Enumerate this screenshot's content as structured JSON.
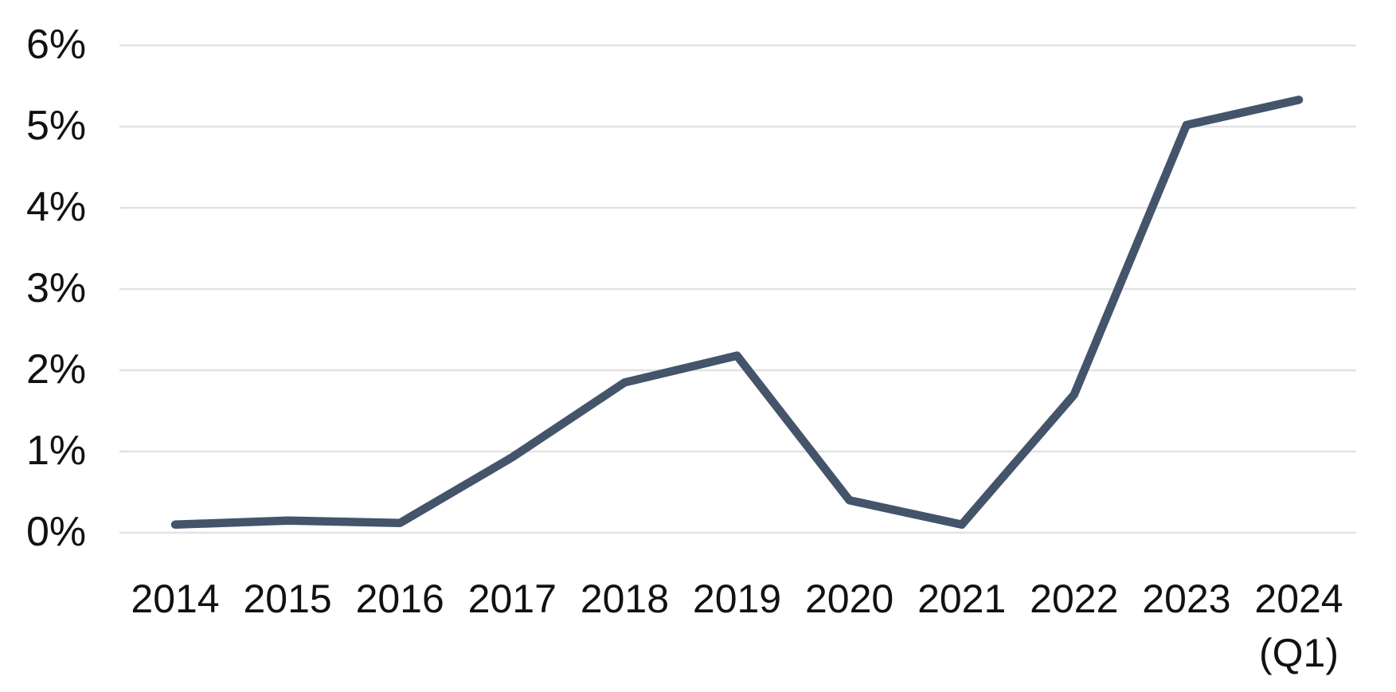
{
  "chart_data": {
    "type": "line",
    "title": "",
    "xlabel": "",
    "ylabel": "",
    "categories": [
      "2014",
      "2015",
      "2016",
      "2017",
      "2018",
      "2019",
      "2020",
      "2021",
      "2022",
      "2023",
      "2024 (Q1)"
    ],
    "x_tick_labels": [
      "2014",
      "2015",
      "2016",
      "2017",
      "2018",
      "2019",
      "2020",
      "2021",
      "2022",
      "2023",
      "2024\n(Q1)"
    ],
    "values": [
      0.1,
      0.15,
      0.12,
      0.93,
      1.85,
      2.18,
      0.4,
      0.1,
      1.7,
      5.02,
      5.33
    ],
    "ylim": [
      0,
      6
    ],
    "yticks": [
      0,
      1,
      2,
      3,
      4,
      5,
      6
    ],
    "ytick_labels": [
      "0%",
      "1%",
      "2%",
      "3%",
      "4%",
      "5%",
      "6%"
    ],
    "grid": "horizontal",
    "legend": "none",
    "line_color": "#44546A",
    "gridline_color": "#e2e2e2",
    "text_color": "#111111",
    "background": "#ffffff"
  }
}
